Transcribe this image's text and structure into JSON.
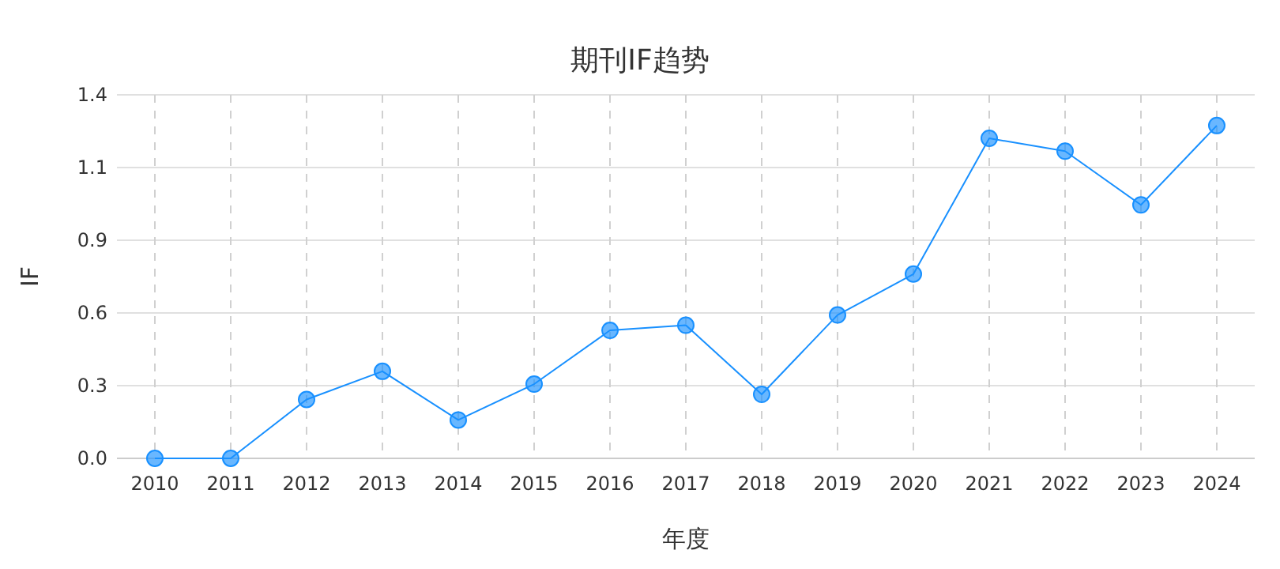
{
  "chart_data": {
    "type": "line",
    "title": "期刊IF趋势",
    "xlabel": "年度",
    "ylabel": "IF",
    "categories": [
      "2010",
      "2011",
      "2012",
      "2013",
      "2014",
      "2015",
      "2016",
      "2017",
      "2018",
      "2019",
      "2020",
      "2021",
      "2022",
      "2023",
      "2024"
    ],
    "series": [
      {
        "color": "#1890ff",
        "values": [
          0,
          0,
          0.23,
          0.34,
          0.15,
          0.29,
          0.5,
          0.52,
          0.25,
          0.56,
          0.72,
          1.25,
          1.2,
          0.99,
          1.3
        ]
      }
    ],
    "ylim": [
      0,
      1.42
    ],
    "yticks": [
      {
        "value": 0,
        "label": "0.0"
      },
      {
        "value": 0.284,
        "label": "0.3"
      },
      {
        "value": 0.568,
        "label": "0.6"
      },
      {
        "value": 0.852,
        "label": "0.9"
      },
      {
        "value": 1.136,
        "label": "1.1"
      },
      {
        "value": 1.42,
        "label": "1.4"
      }
    ],
    "grid": true,
    "marker": "circle"
  }
}
